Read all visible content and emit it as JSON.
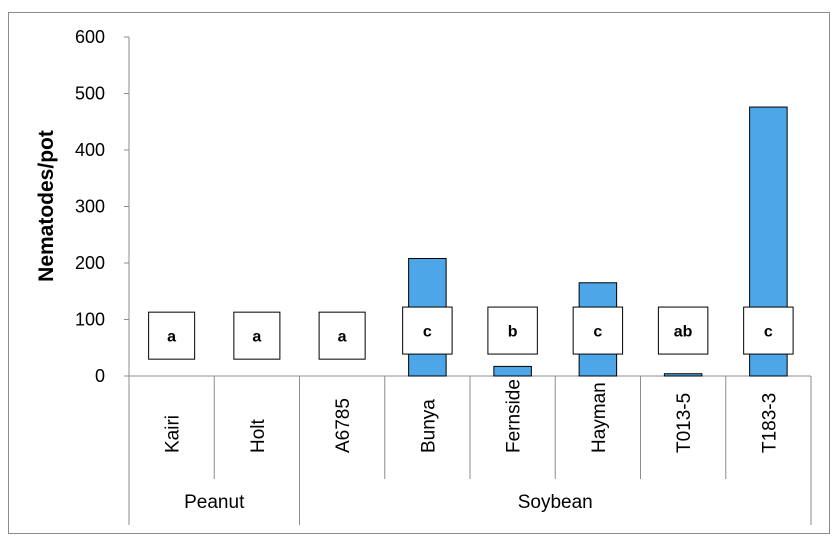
{
  "chart_data": {
    "type": "bar",
    "ylabel": "Nematodes/pot",
    "ylim": [
      0,
      600
    ],
    "y_ticks": [
      "0",
      "100",
      "200",
      "300",
      "400",
      "500",
      "600"
    ],
    "grid": false,
    "bar_color": "#4da6e8",
    "groups": [
      {
        "name": "Peanut",
        "categories": [
          "Kairi",
          "Holt"
        ]
      },
      {
        "name": "Soybean",
        "categories": [
          "A6785",
          "Bunya",
          "Fernside",
          "Hayman",
          "T013-5",
          "T183-3"
        ]
      }
    ],
    "categories": [
      "Kairi",
      "Holt",
      "A6785",
      "Bunya",
      "Fernside",
      "Hayman",
      "T013-5",
      "T183-3"
    ],
    "values": [
      0,
      0,
      0,
      208,
      17,
      165,
      4,
      476
    ],
    "significance_letters": [
      "a",
      "a",
      "a",
      "c",
      "b",
      "c",
      "ab",
      "c"
    ]
  }
}
